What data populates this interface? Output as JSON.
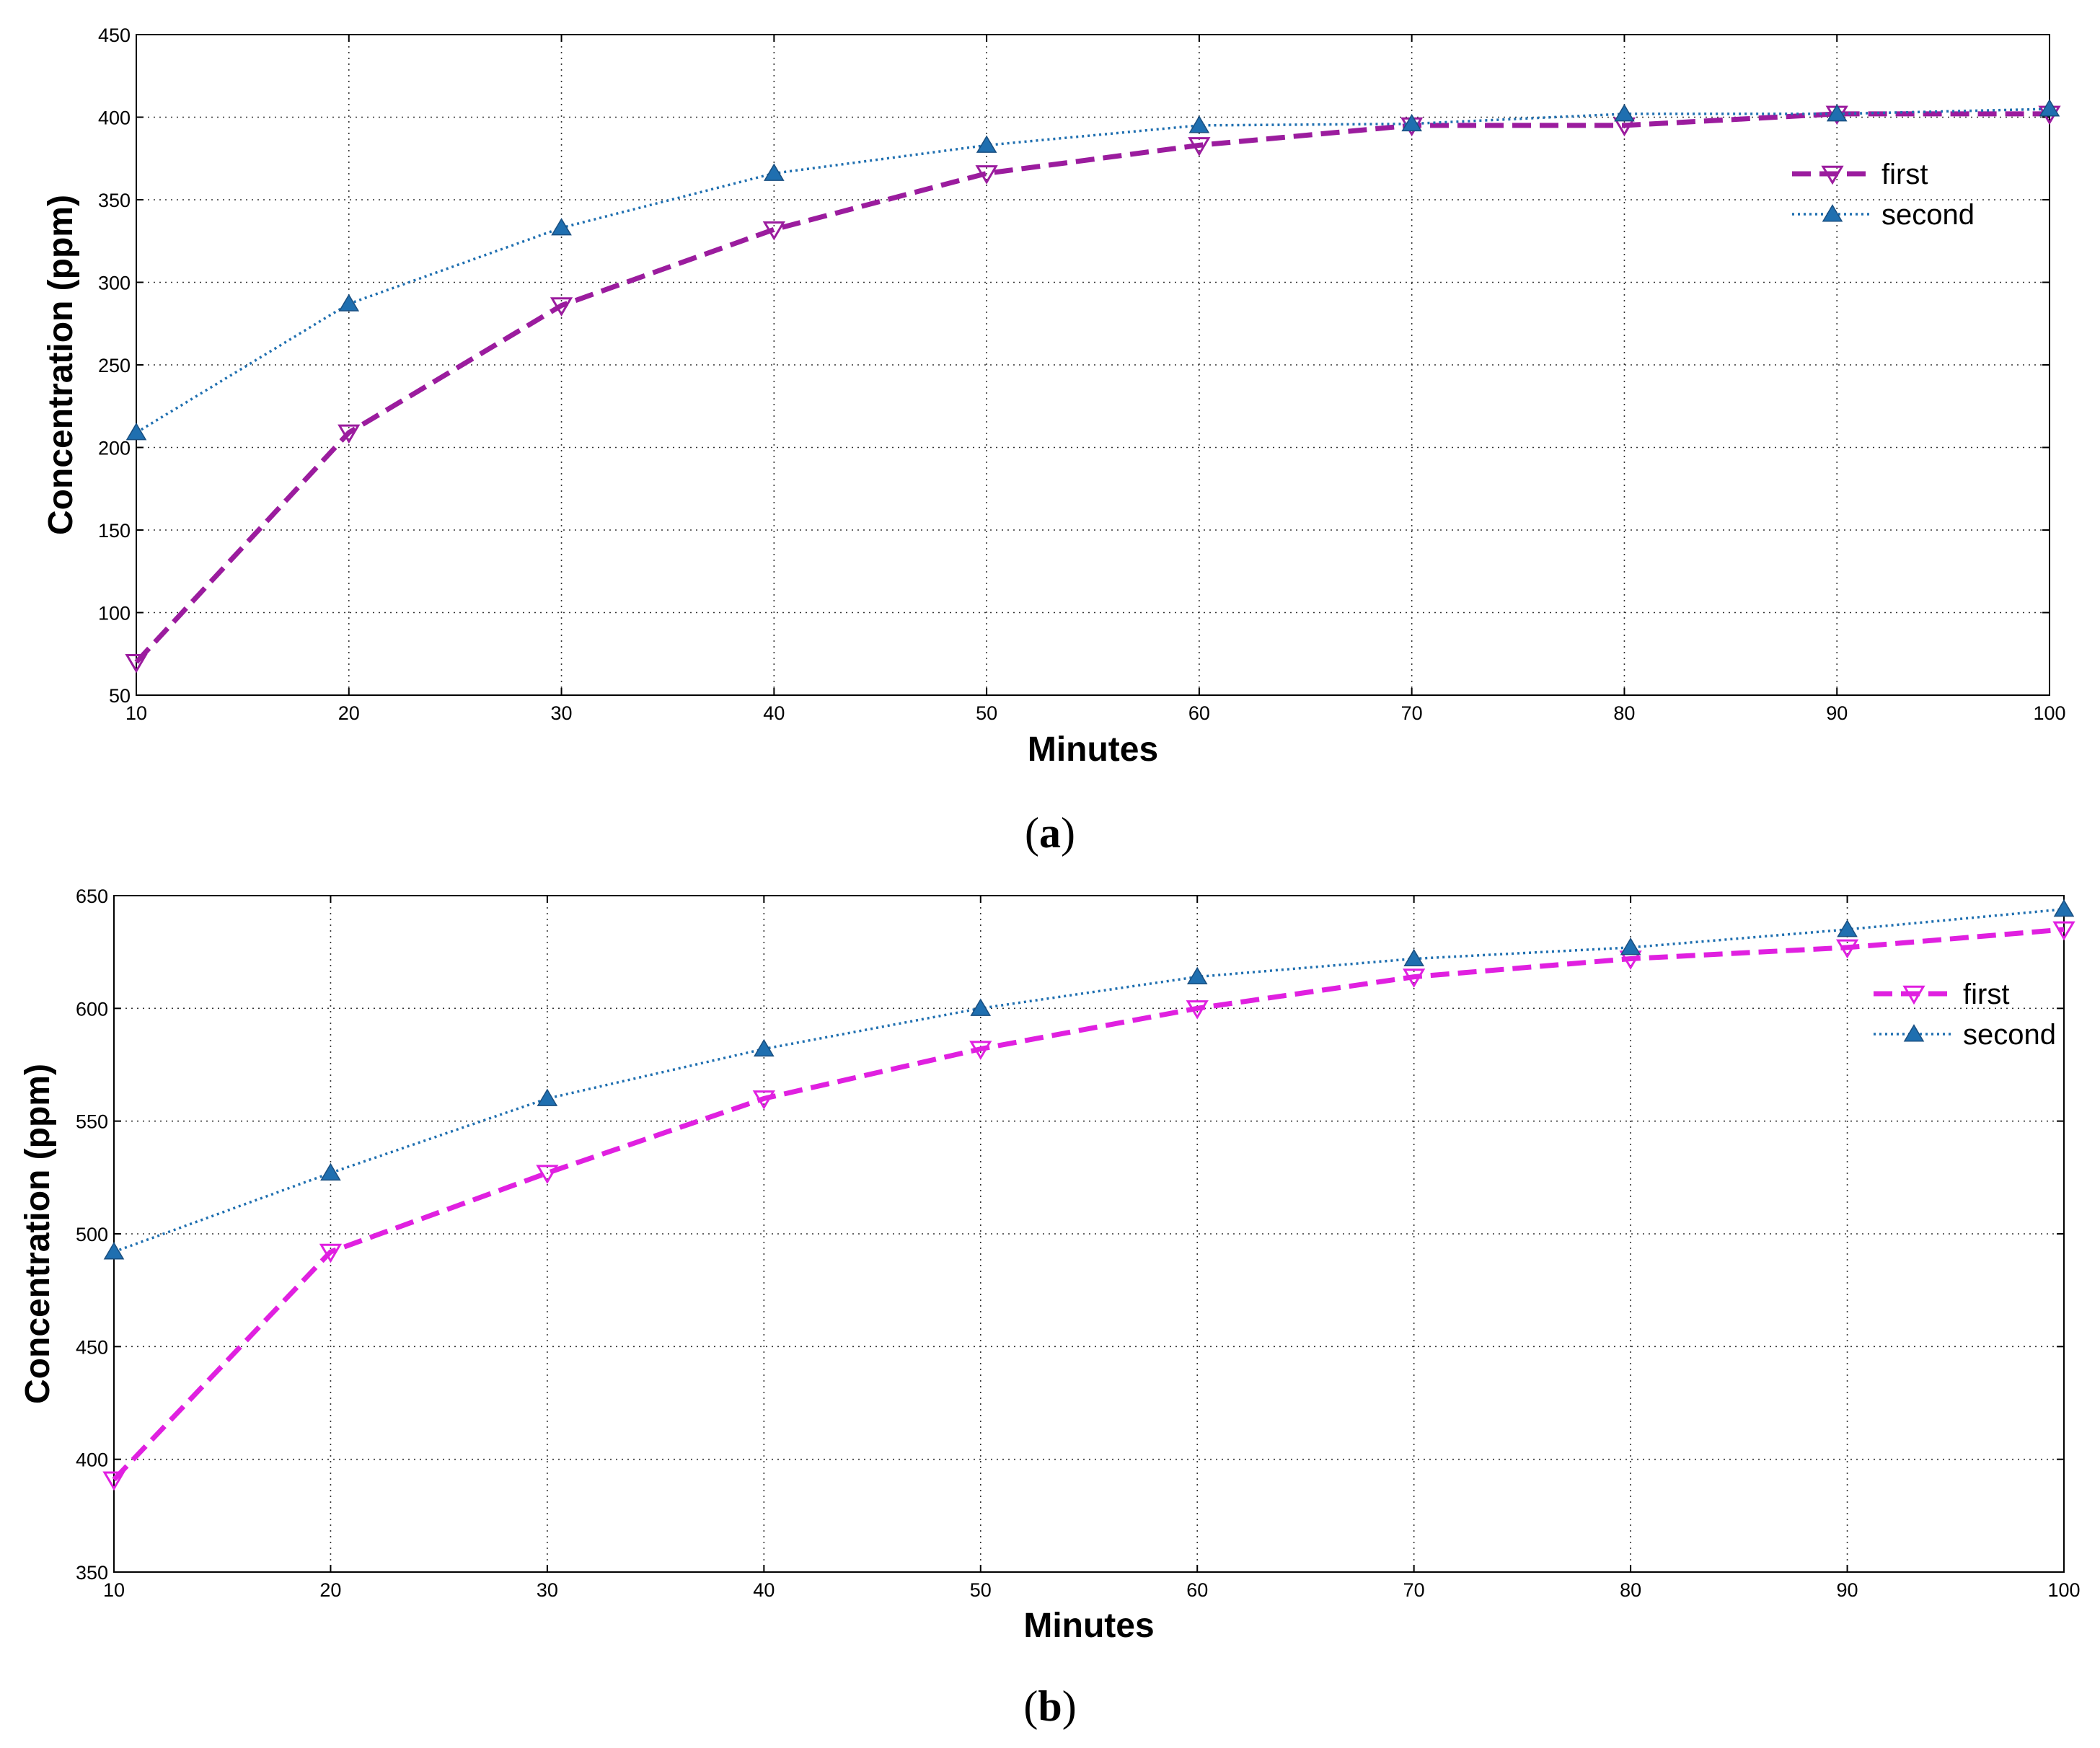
{
  "chart_data": [
    {
      "type": "line",
      "caption": {
        "open": "(",
        "letter": "a",
        "close": ")"
      },
      "xlabel": "Minutes",
      "ylabel": "Concentration (ppm)",
      "xlim": [
        10,
        100
      ],
      "ylim": [
        50,
        450
      ],
      "xticks": [
        10,
        20,
        30,
        40,
        50,
        60,
        70,
        80,
        90,
        100
      ],
      "yticks": [
        50,
        100,
        150,
        200,
        250,
        300,
        350,
        400,
        450
      ],
      "grid": true,
      "legend_position": "top-right",
      "x": [
        10,
        20,
        30,
        40,
        50,
        60,
        70,
        80,
        90,
        100
      ],
      "series": [
        {
          "name": "first",
          "values": [
            70,
            209,
            286,
            332,
            366,
            383,
            395,
            395,
            402,
            402
          ],
          "color": "#9b1c9e",
          "line_style": "dashed",
          "marker": "triangle-down"
        },
        {
          "name": "second",
          "values": [
            209,
            287,
            333,
            366,
            383,
            395,
            396,
            402,
            402,
            405
          ],
          "color": "#1f6fb0",
          "line_style": "dotted",
          "marker": "triangle-up"
        }
      ]
    },
    {
      "type": "line",
      "caption": {
        "open": "(",
        "letter": "b",
        "close": ")"
      },
      "xlabel": "Minutes",
      "ylabel": "Concentration (ppm)",
      "xlim": [
        10,
        100
      ],
      "ylim": [
        350,
        650
      ],
      "xticks": [
        10,
        20,
        30,
        40,
        50,
        60,
        70,
        80,
        90,
        100
      ],
      "yticks": [
        350,
        400,
        450,
        500,
        550,
        600,
        650
      ],
      "grid": true,
      "legend_position": "top-right",
      "x": [
        10,
        20,
        30,
        40,
        50,
        60,
        70,
        80,
        90,
        100
      ],
      "series": [
        {
          "name": "first",
          "values": [
            391,
            492,
            527,
            560,
            582,
            600,
            614,
            622,
            627,
            635
          ],
          "color": "#e020e0",
          "line_style": "dashed",
          "marker": "triangle-down"
        },
        {
          "name": "second",
          "values": [
            492,
            527,
            560,
            582,
            600,
            614,
            622,
            627,
            635,
            644
          ],
          "color": "#1f6fb0",
          "line_style": "dotted",
          "marker": "triangle-up"
        }
      ]
    }
  ]
}
